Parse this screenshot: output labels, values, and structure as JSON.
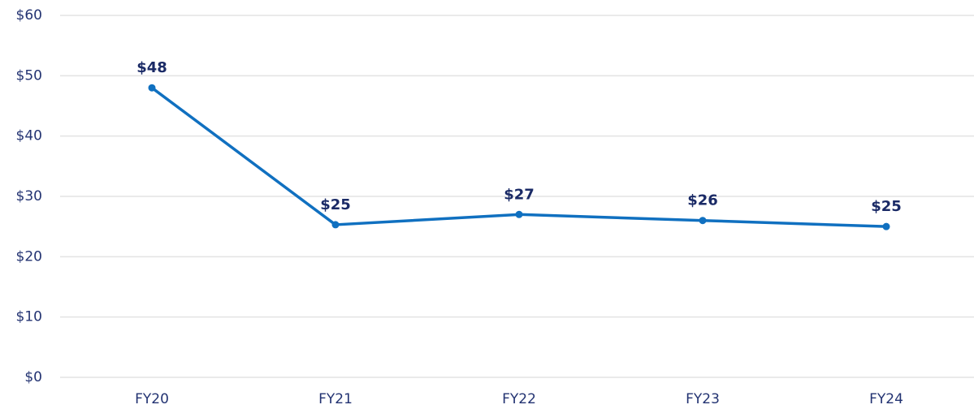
{
  "chart_data": {
    "type": "line",
    "categories": [
      "FY20",
      "FY21",
      "FY22",
      "FY23",
      "FY24"
    ],
    "series": [
      {
        "color": "#1070c0",
        "values": [
          48,
          25.3,
          27,
          26,
          25
        ],
        "value_labels": [
          "$48",
          "$25",
          "$27",
          "$26",
          "$25"
        ]
      }
    ],
    "ylim": [
      0,
      60
    ],
    "yticks": [
      {
        "value": 0,
        "label": "$0"
      },
      {
        "value": 10,
        "label": "$10"
      },
      {
        "value": 20,
        "label": "$20"
      },
      {
        "value": 30,
        "label": "$30"
      },
      {
        "value": 40,
        "label": "$40"
      },
      {
        "value": 50,
        "label": "$50"
      },
      {
        "value": 60,
        "label": "$60"
      }
    ],
    "grid": true
  }
}
